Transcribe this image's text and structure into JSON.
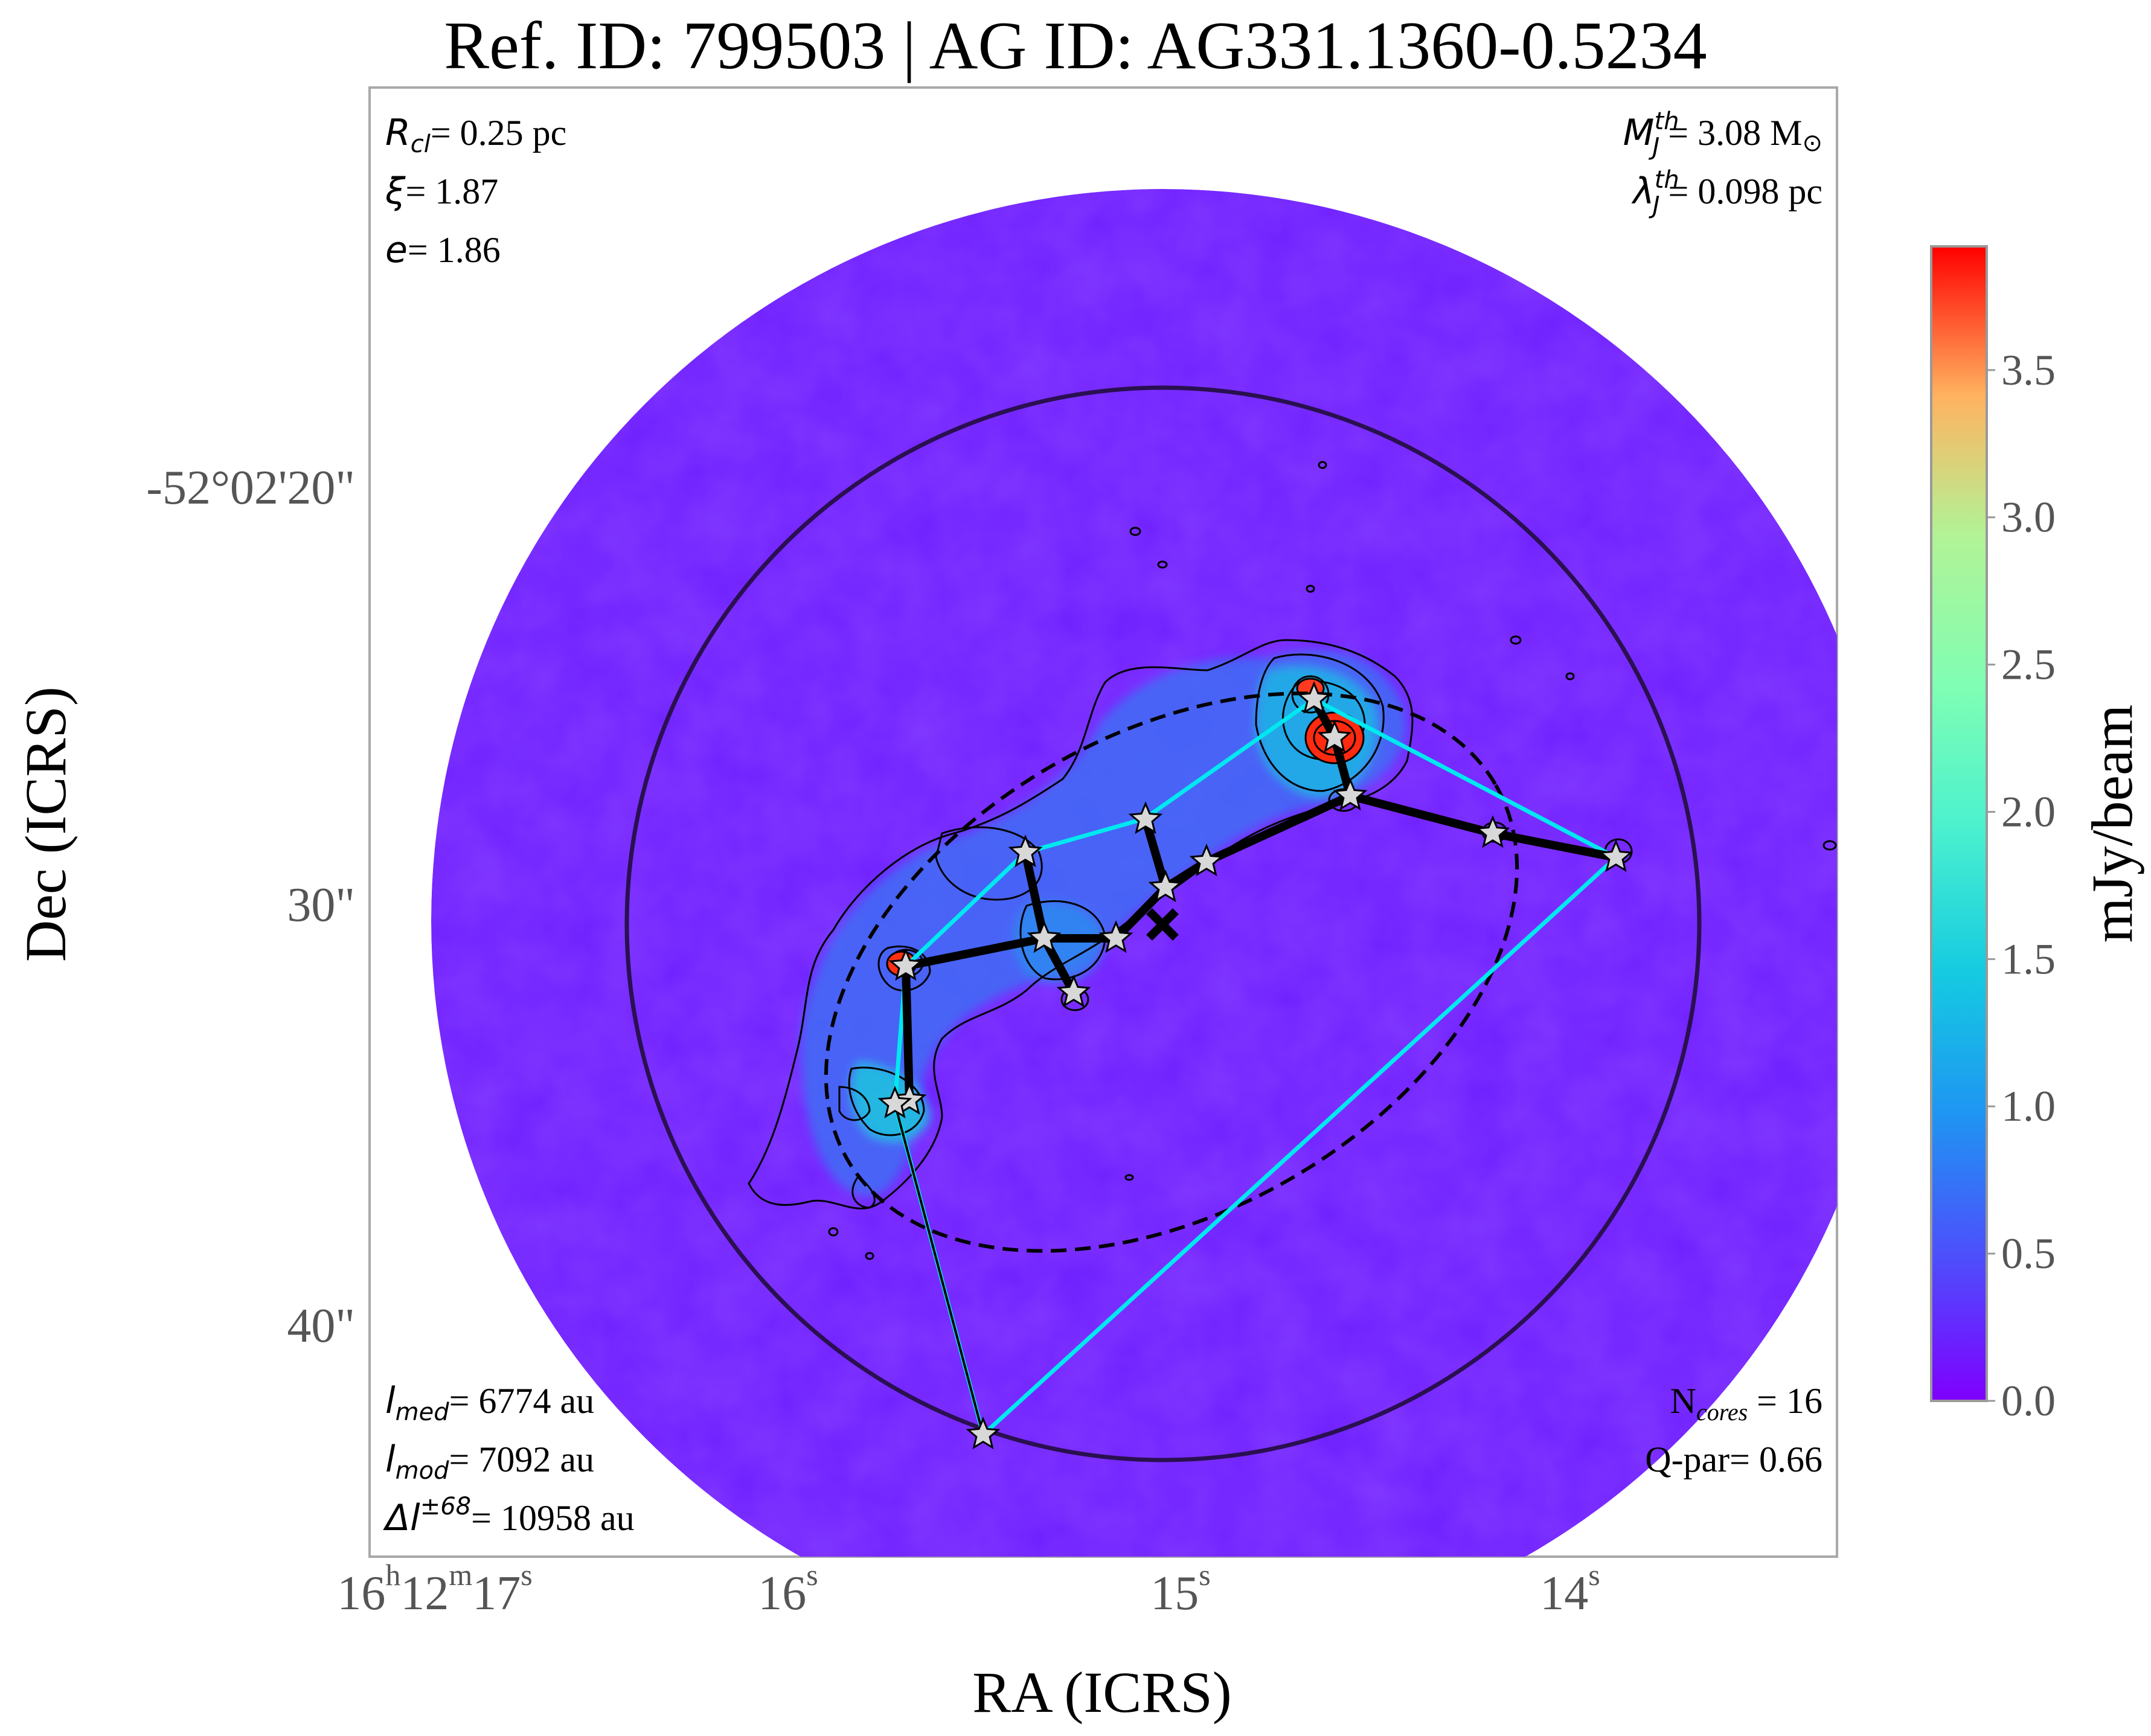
{
  "title": "Ref. ID: 799503 | AG ID: AG331.1360-0.5234",
  "xlabel": "RA (ICRS)",
  "ylabel": "Dec (ICRS)",
  "colorbar": {
    "label": "mJy/beam",
    "ticks": [
      "0.0",
      "0.5",
      "1.0",
      "1.5",
      "2.0",
      "2.5",
      "3.0",
      "3.5"
    ],
    "vmin": 0.0,
    "vmax": 3.92,
    "colormap": "rainbow"
  },
  "ra_ticks": [
    {
      "h": "16",
      "hu": "h",
      "m": "12",
      "mu": "m",
      "s": "17",
      "su": "s"
    },
    {
      "s": "16",
      "su": "s"
    },
    {
      "s": "15",
      "su": "s"
    },
    {
      "s": "14",
      "su": "s"
    }
  ],
  "dec_ticks": [
    "-52°02'20\"",
    "30\"",
    "40\""
  ],
  "params_top_left": [
    {
      "sym": "R",
      "sub": "cl",
      "val": "= 0.25 pc"
    },
    {
      "sym": "ξ",
      "val": "= 1.87"
    },
    {
      "sym": "e",
      "val": "= 1.86"
    }
  ],
  "params_top_right": [
    {
      "sym": "M",
      "sup": "th",
      "sub": "J",
      "val": "= 3.08 M",
      "unit_sym": "⊙"
    },
    {
      "sym": "λ",
      "sup": "th",
      "sub": "J",
      "val": "= 0.098 pc"
    }
  ],
  "params_bottom_left": [
    {
      "sym": "l",
      "sub": "med",
      "val": "= 6774 au"
    },
    {
      "sym": "l",
      "sub": "mod",
      "val": "= 7092 au"
    },
    {
      "sym": "Δl",
      "sup": "±68",
      "val": "= 10958 au"
    }
  ],
  "params_bottom_right": [
    {
      "pre": "N",
      "sub": "cores",
      "val": " = 16"
    },
    {
      "pre": "Q-par",
      "val": "= 0.66"
    }
  ],
  "colors": {
    "background_map": "#6f20ff",
    "emission_mid": "#2f7df0",
    "emission_bright": "#1fb8e0",
    "peak": "#ff2a10",
    "mst_edge": "#000000",
    "hull_edge": "#00f0f0",
    "core_marker": "#d8d8d8",
    "aperture": "#2a1050"
  },
  "core_count": 16
}
